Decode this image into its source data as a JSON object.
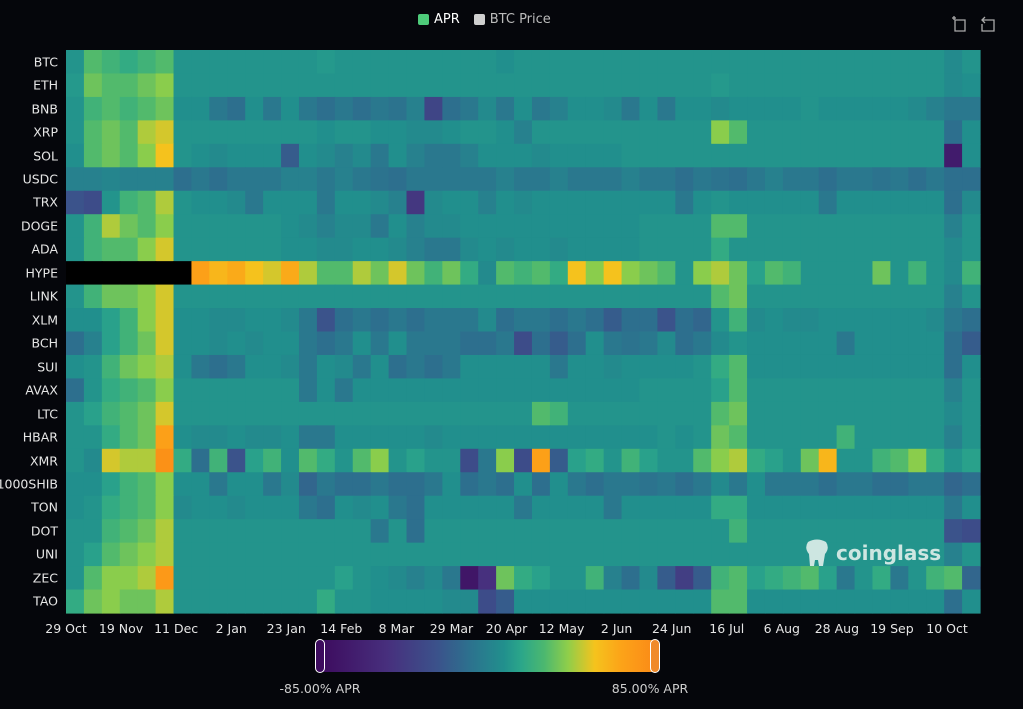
{
  "legend": {
    "items": [
      {
        "label": "APR",
        "color": "#4ecb7a"
      },
      {
        "label": "BTC Price",
        "color": "#cfcfcf"
      }
    ]
  },
  "toolbar": {
    "icons": [
      "zoom-select-icon",
      "zoom-reset-icon"
    ]
  },
  "watermark": "coinglass",
  "colorbar": {
    "min_label": "-85.00% APR",
    "max_label": "85.00% APR",
    "min": -85,
    "max": 85,
    "colors": [
      "#3d0b5e",
      "#472f7d",
      "#3b528b",
      "#2c728e",
      "#21908d",
      "#2ba68a",
      "#4cb86f",
      "#8fce4a",
      "#f5c31d",
      "#fca318",
      "#fb8a17"
    ]
  },
  "chart_data": {
    "type": "heatmap",
    "title": "",
    "xlabel": "",
    "ylabel": "",
    "x_resolution": "weekly",
    "x_range": [
      "29 Oct",
      "23 Oct"
    ],
    "x_ticks": [
      "29 Oct",
      "19 Nov",
      "11 Dec",
      "2 Jan",
      "23 Jan",
      "14 Feb",
      "8 Mar",
      "29 Mar",
      "20 Apr",
      "12 May",
      "2 Jun",
      "24 Jun",
      "16 Jul",
      "6 Aug",
      "28 Aug",
      "19 Sep",
      "10 Oct"
    ],
    "value_unit": "% APR",
    "value_range": [
      -85,
      85
    ],
    "rows": [
      {
        "name": "BTC",
        "values": [
          10,
          30,
          25,
          20,
          25,
          30,
          10,
          10,
          10,
          10,
          10,
          10,
          10,
          10,
          12,
          10,
          10,
          10,
          10,
          10,
          10,
          10,
          10,
          10,
          8,
          10,
          10,
          10,
          10,
          10,
          10,
          10,
          10,
          10,
          10,
          10,
          10,
          10,
          10,
          10,
          10,
          10,
          10,
          10,
          10,
          10,
          10,
          10,
          10,
          5,
          10
        ]
      },
      {
        "name": "ETH",
        "values": [
          12,
          35,
          30,
          30,
          35,
          40,
          10,
          10,
          10,
          10,
          10,
          10,
          10,
          10,
          10,
          10,
          10,
          10,
          10,
          10,
          10,
          10,
          10,
          10,
          10,
          10,
          10,
          10,
          10,
          10,
          10,
          10,
          10,
          10,
          10,
          10,
          12,
          10,
          10,
          10,
          10,
          10,
          10,
          10,
          10,
          10,
          10,
          10,
          10,
          5,
          8
        ]
      },
      {
        "name": "BNB",
        "values": [
          10,
          25,
          30,
          25,
          30,
          35,
          8,
          8,
          -5,
          -10,
          8,
          -5,
          8,
          -5,
          -10,
          -5,
          -10,
          -5,
          -8,
          0,
          -35,
          -10,
          -5,
          5,
          -5,
          8,
          -5,
          0,
          8,
          8,
          5,
          -5,
          8,
          -5,
          8,
          8,
          5,
          8,
          8,
          8,
          8,
          10,
          8,
          8,
          8,
          8,
          8,
          5,
          0,
          -5,
          -5
        ]
      },
      {
        "name": "XRP",
        "values": [
          10,
          30,
          35,
          30,
          45,
          50,
          10,
          10,
          10,
          10,
          10,
          10,
          10,
          10,
          8,
          10,
          10,
          8,
          8,
          5,
          5,
          8,
          10,
          10,
          8,
          0,
          10,
          10,
          10,
          10,
          10,
          10,
          10,
          10,
          10,
          10,
          40,
          30,
          10,
          10,
          10,
          10,
          10,
          10,
          10,
          10,
          10,
          10,
          10,
          -10,
          8
        ]
      },
      {
        "name": "SOL",
        "values": [
          8,
          30,
          35,
          30,
          40,
          55,
          10,
          8,
          5,
          8,
          8,
          8,
          -20,
          8,
          5,
          0,
          5,
          -5,
          8,
          0,
          -5,
          -5,
          0,
          8,
          8,
          8,
          5,
          8,
          8,
          8,
          8,
          10,
          10,
          10,
          10,
          10,
          10,
          10,
          10,
          10,
          10,
          10,
          10,
          10,
          10,
          10,
          10,
          10,
          10,
          -70,
          8
        ]
      },
      {
        "name": "USDC",
        "values": [
          0,
          0,
          2,
          0,
          0,
          0,
          -10,
          -5,
          -10,
          -5,
          -5,
          -5,
          0,
          0,
          -5,
          0,
          -5,
          -8,
          -10,
          -5,
          -5,
          -5,
          -5,
          -5,
          0,
          -5,
          -5,
          0,
          -5,
          -5,
          -5,
          0,
          -5,
          -5,
          -10,
          -5,
          -8,
          -10,
          -5,
          0,
          -5,
          -5,
          -10,
          -5,
          -5,
          -8,
          -5,
          -10,
          -5,
          -10,
          -10
        ]
      },
      {
        "name": "TRX",
        "values": [
          -25,
          -30,
          10,
          25,
          30,
          45,
          10,
          8,
          8,
          5,
          -5,
          8,
          8,
          8,
          -5,
          8,
          8,
          5,
          0,
          -45,
          5,
          8,
          8,
          0,
          8,
          5,
          8,
          8,
          8,
          8,
          8,
          8,
          8,
          8,
          -5,
          8,
          10,
          8,
          8,
          8,
          8,
          8,
          -5,
          8,
          8,
          8,
          8,
          8,
          8,
          -10,
          5
        ]
      },
      {
        "name": "DOGE",
        "values": [
          10,
          25,
          45,
          35,
          30,
          40,
          10,
          10,
          10,
          10,
          10,
          10,
          8,
          5,
          0,
          5,
          5,
          -5,
          8,
          0,
          5,
          5,
          8,
          8,
          8,
          8,
          8,
          8,
          8,
          8,
          8,
          8,
          10,
          10,
          10,
          10,
          30,
          30,
          10,
          10,
          10,
          10,
          10,
          10,
          10,
          10,
          10,
          10,
          10,
          0,
          10
        ]
      },
      {
        "name": "ADA",
        "values": [
          10,
          25,
          30,
          30,
          40,
          50,
          10,
          10,
          10,
          10,
          10,
          10,
          8,
          8,
          5,
          5,
          8,
          8,
          5,
          0,
          -5,
          -5,
          5,
          8,
          5,
          8,
          8,
          5,
          8,
          8,
          8,
          8,
          10,
          10,
          10,
          10,
          20,
          10,
          10,
          10,
          10,
          10,
          10,
          10,
          10,
          10,
          10,
          10,
          10,
          5,
          10
        ]
      },
      {
        "name": "HYPE",
        "values": [
          null,
          null,
          null,
          null,
          null,
          null,
          null,
          70,
          60,
          65,
          55,
          50,
          65,
          45,
          30,
          30,
          45,
          35,
          50,
          35,
          25,
          35,
          20,
          5,
          30,
          25,
          30,
          20,
          55,
          40,
          55,
          40,
          35,
          30,
          10,
          40,
          45,
          35,
          15,
          30,
          25,
          10,
          10,
          10,
          10,
          35,
          10,
          25,
          10,
          5,
          25
        ]
      },
      {
        "name": "LINK",
        "values": [
          10,
          25,
          35,
          35,
          40,
          50,
          10,
          10,
          10,
          10,
          10,
          10,
          10,
          10,
          10,
          10,
          10,
          10,
          10,
          10,
          10,
          10,
          10,
          10,
          10,
          10,
          10,
          10,
          10,
          10,
          10,
          10,
          10,
          10,
          10,
          10,
          30,
          35,
          10,
          10,
          10,
          10,
          10,
          10,
          10,
          10,
          10,
          10,
          10,
          0,
          10
        ]
      },
      {
        "name": "XLM",
        "values": [
          8,
          8,
          15,
          25,
          40,
          50,
          8,
          8,
          5,
          5,
          8,
          8,
          5,
          -5,
          -25,
          -10,
          -5,
          -10,
          -5,
          -10,
          -5,
          -5,
          -5,
          5,
          -10,
          -5,
          -5,
          -10,
          -5,
          -10,
          -20,
          -10,
          -10,
          -25,
          -10,
          -15,
          10,
          25,
          5,
          8,
          5,
          5,
          8,
          8,
          8,
          8,
          8,
          8,
          5,
          -5,
          -10
        ]
      },
      {
        "name": "BCH",
        "values": [
          -10,
          0,
          15,
          25,
          35,
          50,
          8,
          8,
          5,
          8,
          5,
          8,
          8,
          -5,
          -10,
          -5,
          8,
          -5,
          8,
          -5,
          -5,
          -5,
          -10,
          -10,
          -5,
          -30,
          -10,
          -20,
          -10,
          8,
          -5,
          -8,
          -5,
          5,
          -10,
          -5,
          5,
          10,
          8,
          8,
          8,
          8,
          8,
          -5,
          8,
          8,
          8,
          8,
          8,
          -10,
          -20
        ]
      },
      {
        "name": "SUI",
        "values": [
          8,
          10,
          25,
          35,
          40,
          45,
          8,
          -5,
          -10,
          -5,
          8,
          8,
          5,
          -5,
          8,
          5,
          -5,
          8,
          -10,
          -5,
          -10,
          -5,
          8,
          8,
          8,
          8,
          8,
          -5,
          8,
          8,
          5,
          8,
          8,
          8,
          8,
          10,
          20,
          30,
          8,
          8,
          8,
          8,
          8,
          8,
          8,
          8,
          8,
          8,
          8,
          -10,
          8
        ]
      },
      {
        "name": "AVAX",
        "values": [
          -10,
          10,
          20,
          25,
          30,
          40,
          10,
          10,
          10,
          10,
          10,
          10,
          10,
          -5,
          8,
          -5,
          8,
          8,
          8,
          8,
          8,
          8,
          8,
          8,
          8,
          8,
          8,
          8,
          8,
          8,
          8,
          8,
          10,
          10,
          10,
          10,
          15,
          30,
          10,
          10,
          10,
          10,
          10,
          10,
          10,
          10,
          10,
          10,
          10,
          0,
          10
        ]
      },
      {
        "name": "LTC",
        "values": [
          10,
          15,
          25,
          30,
          35,
          50,
          10,
          10,
          10,
          10,
          10,
          10,
          10,
          10,
          10,
          10,
          10,
          10,
          10,
          10,
          10,
          10,
          10,
          10,
          10,
          10,
          30,
          25,
          10,
          10,
          10,
          10,
          10,
          10,
          10,
          10,
          30,
          35,
          10,
          10,
          10,
          10,
          10,
          10,
          10,
          10,
          10,
          10,
          10,
          5,
          10
        ]
      },
      {
        "name": "HBAR",
        "values": [
          10,
          10,
          20,
          30,
          35,
          70,
          8,
          5,
          5,
          8,
          5,
          5,
          8,
          -5,
          -5,
          8,
          8,
          8,
          8,
          8,
          5,
          8,
          8,
          8,
          8,
          8,
          8,
          8,
          8,
          8,
          8,
          8,
          8,
          10,
          8,
          10,
          35,
          30,
          10,
          10,
          10,
          10,
          10,
          25,
          10,
          10,
          10,
          10,
          10,
          0,
          10
        ]
      },
      {
        "name": "XMR",
        "values": [
          10,
          5,
          50,
          45,
          45,
          80,
          20,
          -10,
          25,
          -25,
          15,
          25,
          8,
          30,
          20,
          10,
          30,
          40,
          10,
          15,
          10,
          10,
          -30,
          -5,
          40,
          -30,
          70,
          -20,
          15,
          20,
          10,
          25,
          15,
          10,
          10,
          30,
          40,
          45,
          20,
          15,
          10,
          35,
          60,
          10,
          10,
          25,
          30,
          40,
          20,
          10,
          15
        ]
      },
      {
        "name": "1000SHIB",
        "values": [
          8,
          8,
          15,
          25,
          30,
          40,
          8,
          8,
          -5,
          8,
          8,
          -5,
          5,
          -15,
          -5,
          -10,
          -10,
          -5,
          -10,
          -10,
          -5,
          8,
          -10,
          -5,
          -10,
          8,
          -10,
          8,
          -5,
          -10,
          -5,
          -5,
          -8,
          -5,
          -10,
          -5,
          5,
          -5,
          8,
          -5,
          -5,
          -5,
          -10,
          -5,
          -5,
          -10,
          -10,
          -5,
          -5,
          -15,
          -10
        ]
      },
      {
        "name": "TON",
        "values": [
          8,
          10,
          20,
          25,
          30,
          40,
          5,
          8,
          8,
          5,
          8,
          8,
          8,
          -5,
          -10,
          8,
          5,
          8,
          -5,
          -10,
          8,
          8,
          8,
          8,
          8,
          -5,
          8,
          8,
          8,
          8,
          -5,
          8,
          8,
          8,
          8,
          8,
          20,
          20,
          8,
          8,
          8,
          8,
          8,
          8,
          8,
          8,
          8,
          8,
          8,
          -5,
          8
        ]
      },
      {
        "name": "DOT",
        "values": [
          10,
          10,
          25,
          30,
          35,
          45,
          10,
          10,
          10,
          10,
          10,
          10,
          10,
          10,
          10,
          10,
          10,
          -5,
          10,
          -10,
          10,
          10,
          10,
          10,
          10,
          10,
          10,
          10,
          10,
          10,
          10,
          10,
          10,
          10,
          10,
          10,
          10,
          25,
          10,
          10,
          10,
          10,
          10,
          10,
          10,
          10,
          10,
          10,
          10,
          -25,
          -30
        ]
      },
      {
        "name": "UNI",
        "values": [
          10,
          15,
          30,
          35,
          40,
          45,
          10,
          10,
          10,
          10,
          10,
          10,
          10,
          10,
          10,
          10,
          10,
          10,
          10,
          10,
          10,
          10,
          10,
          10,
          10,
          10,
          10,
          10,
          10,
          10,
          10,
          10,
          10,
          10,
          10,
          10,
          10,
          10,
          10,
          10,
          10,
          10,
          10,
          10,
          10,
          10,
          10,
          10,
          10,
          0,
          10
        ]
      },
      {
        "name": "ZEC",
        "values": [
          10,
          30,
          40,
          40,
          45,
          75,
          10,
          10,
          10,
          10,
          10,
          10,
          10,
          10,
          10,
          15,
          10,
          8,
          5,
          0,
          5,
          -5,
          -75,
          -50,
          35,
          20,
          15,
          10,
          10,
          25,
          0,
          -10,
          5,
          -20,
          -40,
          -20,
          25,
          30,
          15,
          20,
          25,
          30,
          15,
          -5,
          10,
          20,
          -5,
          10,
          25,
          30,
          -15
        ]
      },
      {
        "name": "TAO",
        "values": [
          20,
          35,
          40,
          35,
          35,
          45,
          10,
          10,
          10,
          10,
          10,
          10,
          10,
          10,
          20,
          10,
          10,
          8,
          8,
          8,
          8,
          5,
          5,
          -30,
          -20,
          8,
          8,
          8,
          8,
          8,
          8,
          8,
          8,
          8,
          8,
          8,
          30,
          30,
          8,
          8,
          8,
          8,
          8,
          8,
          8,
          8,
          8,
          8,
          8,
          -10,
          8
        ]
      }
    ]
  }
}
